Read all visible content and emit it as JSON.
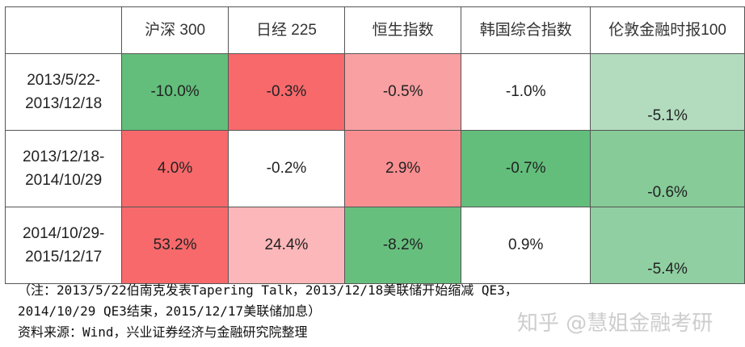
{
  "table": {
    "headers": [
      "",
      "沪深 300",
      "日经 225",
      "恒生指数",
      "韩国综合指数",
      "伦敦金融时报100"
    ],
    "rows": [
      {
        "period": "2013/5/22-2013/12/18",
        "values": [
          "-10.0%",
          "-0.3%",
          "-0.5%",
          "-1.0%",
          "-5.1%"
        ],
        "colors": [
          "#63be7b",
          "#f8696b",
          "#f9a0a2",
          "#ffffff",
          "#b3dcbf"
        ]
      },
      {
        "period": "2013/12/18-2014/10/29",
        "values": [
          "4.0%",
          "-0.2%",
          "2.9%",
          "-0.7%",
          "-0.6%"
        ],
        "colors": [
          "#f8696b",
          "#ffffff",
          "#fa8f91",
          "#63be7b",
          "#86cb98"
        ]
      },
      {
        "period": "2014/10/29-2015/12/17",
        "values": [
          "53.2%",
          "24.4%",
          "-8.2%",
          "0.9%",
          "-5.4%"
        ],
        "colors": [
          "#f8696b",
          "#fbb7b9",
          "#67bf7e",
          "#ffffff",
          "#90cfa1"
        ]
      }
    ]
  },
  "notes": {
    "line1": "（注：2013/5/22伯南克发表Tapering Talk，2013/12/18美联储开始缩减 QE3，",
    "line2": "2014/10/29 QE3结束，2015/12/17美联储加息）",
    "source": "资料来源：Wind，兴业证券经济与金融研究院整理"
  },
  "watermark": "知乎 @慧姐金融考研"
}
